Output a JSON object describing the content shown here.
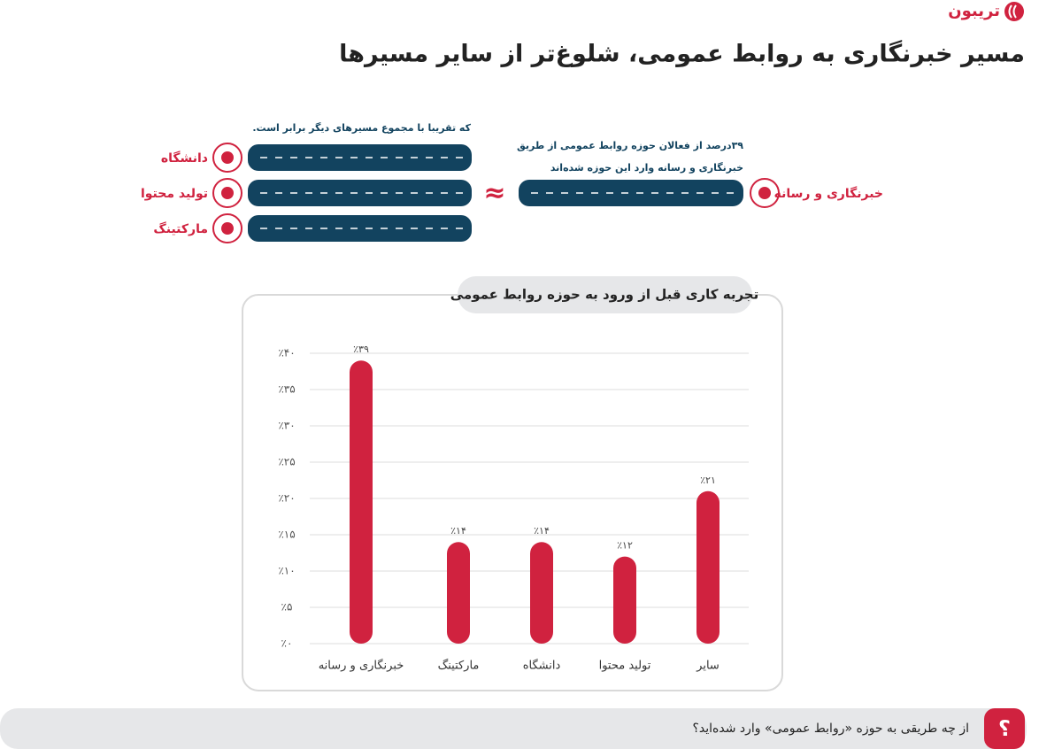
{
  "logo": "تریبون",
  "headline": "مسیر خبرنگاری به روابط عمومی، شلوغ‌تر از سایر مسیرها",
  "diagram": {
    "left_note": "که تقریبا با مجموع مسیرهای دیگر برابر است.",
    "left_paths": [
      "دانشگاه",
      "تولید محتوا",
      "مارکتینگ"
    ],
    "right_note": [
      "۳۹درصد از فعالان حوزه روابط عمومی از طریق",
      "خبرنگاری و رسانه وارد این حوزه شده‌اند"
    ],
    "right_path": "خبرنگاری و رسانه",
    "symbol": "≈"
  },
  "chart_data": {
    "type": "bar",
    "title": "تجربه کاری قبل از ورود به حوزه روابط عمومی",
    "categories": [
      "خبرنگاری و رسانه",
      "مارکتینگ",
      "دانشگاه",
      "تولید محتوا",
      "سایر"
    ],
    "values": [
      39,
      14,
      14,
      12,
      21
    ],
    "value_labels": [
      "٪۳۹",
      "٪۱۴",
      "٪۱۴",
      "٪۱۲",
      "٪۲۱"
    ],
    "color": "#d0223f",
    "ylim": [
      0,
      40
    ],
    "yticks": [
      {
        "value": 0,
        "label": "٪۰"
      },
      {
        "value": 5,
        "label": "٪۵"
      },
      {
        "value": 10,
        "label": "٪۱۰"
      },
      {
        "value": 15,
        "label": "٪۱۵"
      },
      {
        "value": 20,
        "label": "٪۲۰"
      },
      {
        "value": 25,
        "label": "٪۲۵"
      },
      {
        "value": 30,
        "label": "٪۳۰"
      },
      {
        "value": 35,
        "label": "٪۳۵"
      },
      {
        "value": 40,
        "label": "٪۴۰"
      }
    ],
    "grid": true
  },
  "footer": {
    "badge": "؟",
    "question": "از چه طریقی به حوزه «روابط عمومی» وارد شده‌اید؟"
  }
}
